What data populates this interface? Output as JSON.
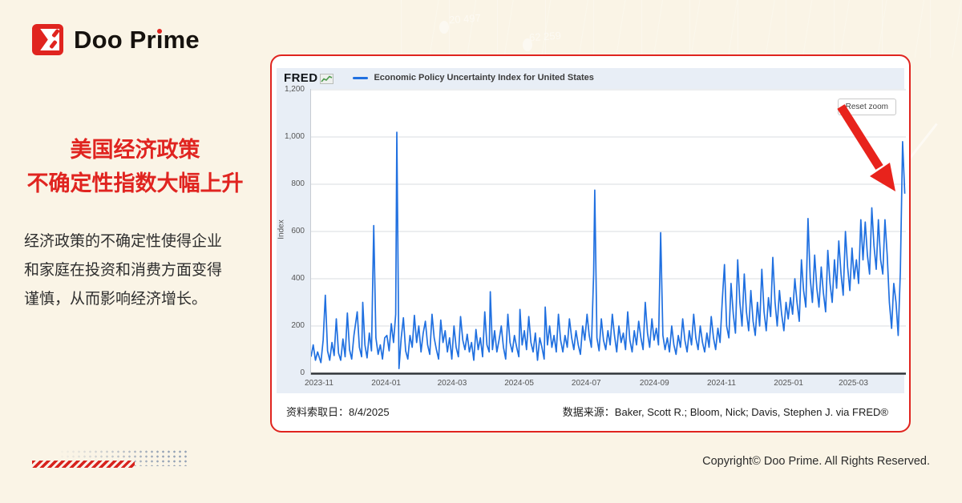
{
  "logo": {
    "part1": "Doo Pr",
    "part2": "ı",
    "part3": "me"
  },
  "headline": {
    "line1": "美国经济政策",
    "line2": "不确定性指数大幅上升"
  },
  "body": {
    "lines": [
      "经济政策的不确定性使得企业",
      "和家庭在投资和消费方面变得",
      "谨慎，从而影响经济增长。"
    ]
  },
  "watermark": {
    "num1": "20 497",
    "num2": "62 259"
  },
  "card": {
    "footer_left": "资料索取日：8/4/2025",
    "footer_right": "数据来源：Baker, Scott R.; Bloom, Nick; Davis, Stephen J. via FRED®"
  },
  "chart": {
    "brand": "FRED",
    "legend_label": "Economic Policy Uncertainty Index for United States",
    "reset_button": "Reset zoom",
    "y_axis_title": "Index"
  },
  "footer": {
    "copyright": "Copyright© Doo Prime. All Rights Reserved."
  },
  "colors": {
    "accent_red": "#e0241f",
    "arrow_red": "#e8231c",
    "line_blue": "#2070e0",
    "widget_bg": "#e8eef6",
    "page_bg": "#faf4e6"
  },
  "chart_data": {
    "type": "line",
    "title": "Economic Policy Uncertainty Index for United States",
    "ylabel": "Index",
    "ylim": [
      0,
      1200
    ],
    "yticks": [
      0,
      200,
      400,
      600,
      800,
      1000,
      1200
    ],
    "ytick_labels": [
      "0",
      "200",
      "400",
      "600",
      "800",
      "1,000",
      "1,200"
    ],
    "x_domain": [
      0,
      541
    ],
    "x_domain_note": "day index from 2023-10-24 to 2025-04-17, daily frequency",
    "xticks": [
      {
        "day": 8,
        "label": "2023-11"
      },
      {
        "day": 69,
        "label": "2024-01"
      },
      {
        "day": 129,
        "label": "2024-03"
      },
      {
        "day": 190,
        "label": "2024-05"
      },
      {
        "day": 251,
        "label": "2024-07"
      },
      {
        "day": 313,
        "label": "2024-09"
      },
      {
        "day": 374,
        "label": "2024-11"
      },
      {
        "day": 435,
        "label": "2025-01"
      },
      {
        "day": 494,
        "label": "2025-03"
      }
    ],
    "grid": "horizontal",
    "legend_position": "top",
    "line_color": "#2070e0",
    "series": [
      {
        "name": "Economic Policy Uncertainty Index for United States",
        "points": [
          [
            0,
            70
          ],
          [
            2,
            120
          ],
          [
            4,
            55
          ],
          [
            6,
            90
          ],
          [
            9,
            45
          ],
          [
            11,
            140
          ],
          [
            13,
            330
          ],
          [
            15,
            95
          ],
          [
            17,
            55
          ],
          [
            19,
            130
          ],
          [
            21,
            75
          ],
          [
            23,
            230
          ],
          [
            25,
            85
          ],
          [
            27,
            55
          ],
          [
            29,
            145
          ],
          [
            31,
            70
          ],
          [
            33,
            255
          ],
          [
            35,
            100
          ],
          [
            37,
            60
          ],
          [
            39,
            160
          ],
          [
            42,
            260
          ],
          [
            44,
            110
          ],
          [
            46,
            70
          ],
          [
            47,
            300
          ],
          [
            49,
            120
          ],
          [
            51,
            65
          ],
          [
            53,
            170
          ],
          [
            55,
            95
          ],
          [
            57,
            625
          ],
          [
            59,
            150
          ],
          [
            61,
            80
          ],
          [
            63,
            120
          ],
          [
            65,
            60
          ],
          [
            67,
            150
          ],
          [
            69,
            160
          ],
          [
            71,
            95
          ],
          [
            73,
            210
          ],
          [
            75,
            130
          ],
          [
            77,
            250
          ],
          [
            78,
            1020
          ],
          [
            80,
            20
          ],
          [
            82,
            150
          ],
          [
            84,
            235
          ],
          [
            86,
            95
          ],
          [
            88,
            60
          ],
          [
            90,
            160
          ],
          [
            92,
            110
          ],
          [
            94,
            245
          ],
          [
            96,
            130
          ],
          [
            98,
            200
          ],
          [
            100,
            90
          ],
          [
            102,
            170
          ],
          [
            104,
            220
          ],
          [
            106,
            120
          ],
          [
            108,
            80
          ],
          [
            110,
            250
          ],
          [
            112,
            150
          ],
          [
            114,
            100
          ],
          [
            116,
            60
          ],
          [
            118,
            225
          ],
          [
            120,
            130
          ],
          [
            122,
            180
          ],
          [
            124,
            90
          ],
          [
            126,
            150
          ],
          [
            128,
            60
          ],
          [
            130,
            200
          ],
          [
            132,
            110
          ],
          [
            134,
            70
          ],
          [
            136,
            240
          ],
          [
            138,
            140
          ],
          [
            140,
            100
          ],
          [
            142,
            165
          ],
          [
            144,
            90
          ],
          [
            146,
            130
          ],
          [
            148,
            55
          ],
          [
            150,
            185
          ],
          [
            152,
            100
          ],
          [
            154,
            150
          ],
          [
            156,
            70
          ],
          [
            158,
            260
          ],
          [
            160,
            120
          ],
          [
            162,
            90
          ],
          [
            163,
            345
          ],
          [
            165,
            100
          ],
          [
            167,
            180
          ],
          [
            169,
            90
          ],
          [
            171,
            140
          ],
          [
            173,
            200
          ],
          [
            175,
            110
          ],
          [
            177,
            60
          ],
          [
            179,
            250
          ],
          [
            181,
            130
          ],
          [
            183,
            90
          ],
          [
            185,
            160
          ],
          [
            187,
            110
          ],
          [
            189,
            70
          ],
          [
            190,
            270
          ],
          [
            192,
            120
          ],
          [
            194,
            180
          ],
          [
            196,
            100
          ],
          [
            198,
            240
          ],
          [
            200,
            130
          ],
          [
            202,
            90
          ],
          [
            204,
            170
          ],
          [
            206,
            55
          ],
          [
            208,
            150
          ],
          [
            210,
            110
          ],
          [
            212,
            60
          ],
          [
            213,
            280
          ],
          [
            215,
            120
          ],
          [
            217,
            200
          ],
          [
            219,
            110
          ],
          [
            221,
            160
          ],
          [
            223,
            90
          ],
          [
            225,
            250
          ],
          [
            227,
            140
          ],
          [
            229,
            90
          ],
          [
            231,
            160
          ],
          [
            233,
            110
          ],
          [
            235,
            230
          ],
          [
            237,
            150
          ],
          [
            239,
            100
          ],
          [
            241,
            180
          ],
          [
            243,
            120
          ],
          [
            245,
            80
          ],
          [
            247,
            200
          ],
          [
            249,
            140
          ],
          [
            251,
            250
          ],
          [
            253,
            160
          ],
          [
            255,
            110
          ],
          [
            257,
            420
          ],
          [
            258,
            775
          ],
          [
            260,
            150
          ],
          [
            262,
            95
          ],
          [
            264,
            230
          ],
          [
            266,
            140
          ],
          [
            268,
            100
          ],
          [
            270,
            180
          ],
          [
            272,
            120
          ],
          [
            274,
            250
          ],
          [
            276,
            160
          ],
          [
            278,
            90
          ],
          [
            280,
            200
          ],
          [
            282,
            130
          ],
          [
            284,
            170
          ],
          [
            286,
            100
          ],
          [
            288,
            260
          ],
          [
            290,
            140
          ],
          [
            292,
            90
          ],
          [
            294,
            180
          ],
          [
            296,
            120
          ],
          [
            298,
            220
          ],
          [
            300,
            150
          ],
          [
            302,
            100
          ],
          [
            304,
            300
          ],
          [
            306,
            170
          ],
          [
            308,
            110
          ],
          [
            310,
            230
          ],
          [
            312,
            140
          ],
          [
            314,
            190
          ],
          [
            316,
            120
          ],
          [
            318,
            595
          ],
          [
            320,
            160
          ],
          [
            322,
            100
          ],
          [
            324,
            150
          ],
          [
            326,
            90
          ],
          [
            328,
            200
          ],
          [
            330,
            120
          ],
          [
            332,
            80
          ],
          [
            334,
            160
          ],
          [
            336,
            110
          ],
          [
            338,
            230
          ],
          [
            340,
            140
          ],
          [
            342,
            90
          ],
          [
            344,
            180
          ],
          [
            346,
            120
          ],
          [
            348,
            250
          ],
          [
            350,
            150
          ],
          [
            352,
            100
          ],
          [
            354,
            200
          ],
          [
            356,
            130
          ],
          [
            358,
            90
          ],
          [
            360,
            170
          ],
          [
            362,
            110
          ],
          [
            364,
            240
          ],
          [
            366,
            150
          ],
          [
            368,
            100
          ],
          [
            370,
            190
          ],
          [
            372,
            130
          ],
          [
            374,
            310
          ],
          [
            376,
            460
          ],
          [
            378,
            200
          ],
          [
            380,
            150
          ],
          [
            382,
            380
          ],
          [
            384,
            250
          ],
          [
            386,
            170
          ],
          [
            388,
            480
          ],
          [
            390,
            300
          ],
          [
            392,
            200
          ],
          [
            394,
            420
          ],
          [
            396,
            260
          ],
          [
            398,
            180
          ],
          [
            400,
            350
          ],
          [
            402,
            220
          ],
          [
            404,
            160
          ],
          [
            406,
            300
          ],
          [
            408,
            200
          ],
          [
            410,
            440
          ],
          [
            412,
            260
          ],
          [
            414,
            180
          ],
          [
            416,
            320
          ],
          [
            418,
            240
          ],
          [
            420,
            490
          ],
          [
            422,
            300
          ],
          [
            424,
            200
          ],
          [
            426,
            350
          ],
          [
            428,
            250
          ],
          [
            430,
            180
          ],
          [
            432,
            300
          ],
          [
            434,
            230
          ],
          [
            436,
            320
          ],
          [
            438,
            250
          ],
          [
            440,
            400
          ],
          [
            442,
            300
          ],
          [
            444,
            220
          ],
          [
            446,
            480
          ],
          [
            448,
            350
          ],
          [
            450,
            280
          ],
          [
            452,
            655
          ],
          [
            454,
            400
          ],
          [
            456,
            300
          ],
          [
            458,
            500
          ],
          [
            460,
            360
          ],
          [
            462,
            280
          ],
          [
            464,
            450
          ],
          [
            466,
            340
          ],
          [
            468,
            260
          ],
          [
            470,
            520
          ],
          [
            472,
            380
          ],
          [
            474,
            300
          ],
          [
            476,
            480
          ],
          [
            478,
            360
          ],
          [
            480,
            560
          ],
          [
            482,
            420
          ],
          [
            484,
            330
          ],
          [
            486,
            600
          ],
          [
            488,
            450
          ],
          [
            490,
            350
          ],
          [
            492,
            530
          ],
          [
            494,
            400
          ],
          [
            496,
            480
          ],
          [
            498,
            380
          ],
          [
            500,
            650
          ],
          [
            502,
            480
          ],
          [
            504,
            640
          ],
          [
            506,
            500
          ],
          [
            508,
            420
          ],
          [
            510,
            700
          ],
          [
            512,
            540
          ],
          [
            514,
            440
          ],
          [
            516,
            650
          ],
          [
            518,
            480
          ],
          [
            520,
            420
          ],
          [
            522,
            650
          ],
          [
            524,
            500
          ],
          [
            526,
            300
          ],
          [
            528,
            190
          ],
          [
            530,
            380
          ],
          [
            532,
            300
          ],
          [
            534,
            160
          ],
          [
            536,
            430
          ],
          [
            538,
            980
          ],
          [
            540,
            760
          ]
        ]
      }
    ]
  }
}
